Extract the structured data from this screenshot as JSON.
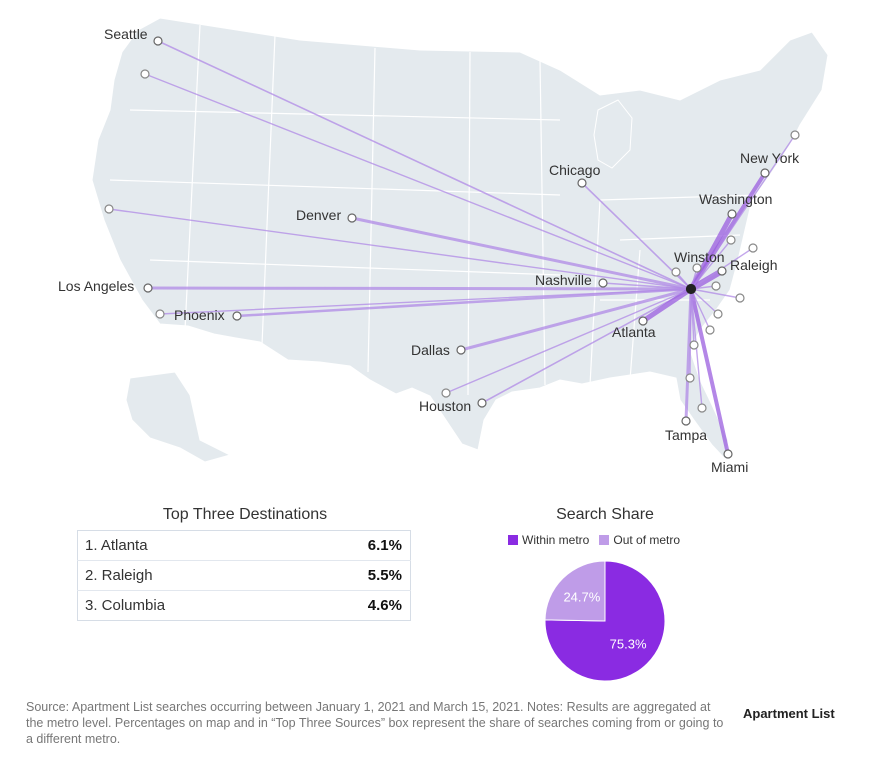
{
  "map": {
    "origin": "Winston",
    "cities": [
      {
        "name": "Seattle",
        "label": "Seattle"
      },
      {
        "name": "Denver",
        "label": "Denver"
      },
      {
        "name": "Los Angeles",
        "label": "Los Angeles"
      },
      {
        "name": "Phoenix",
        "label": "Phoenix"
      },
      {
        "name": "Dallas",
        "label": "Dallas"
      },
      {
        "name": "Houston",
        "label": "Houston"
      },
      {
        "name": "Chicago",
        "label": "Chicago"
      },
      {
        "name": "Nashville",
        "label": "Nashville"
      },
      {
        "name": "Atlanta",
        "label": "Atlanta"
      },
      {
        "name": "Tampa",
        "label": "Tampa"
      },
      {
        "name": "Miami",
        "label": "Miami"
      },
      {
        "name": "Washington",
        "label": "Washington"
      },
      {
        "name": "New York",
        "label": "New York"
      },
      {
        "name": "Raleigh",
        "label": "Raleigh"
      },
      {
        "name": "Winston",
        "label": "Winston"
      }
    ],
    "colors": {
      "land": "#e4eaee",
      "border": "#ffffff",
      "flow": "#b18ae6",
      "flow_strong": "#9b5fe0",
      "origin": "#222222"
    }
  },
  "destinations": {
    "title": "Top Three Destinations",
    "rows": [
      {
        "label": "1. Atlanta",
        "pct": "6.1%"
      },
      {
        "label": "2. Raleigh",
        "pct": "5.5%"
      },
      {
        "label": "3. Columbia",
        "pct": "4.6%"
      }
    ]
  },
  "search_share": {
    "title": "Search Share",
    "legend": [
      {
        "label": "Within metro",
        "color": "#8a2be2"
      },
      {
        "label": "Out of metro",
        "color": "#bf9ce8"
      }
    ],
    "slices": [
      {
        "name": "Within metro",
        "value": 75.3,
        "label": "75.3%",
        "color": "#8a2be2"
      },
      {
        "name": "Out of metro",
        "value": 24.7,
        "label": "24.7%",
        "color": "#bf9ce8"
      }
    ]
  },
  "footer": {
    "source": "Source: Apartment List searches occurring between January 1, 2021 and March 15, 2021. Notes: Results are aggregated at the metro level. Percentages on map and in “Top Three Sources” box represent the share of searches coming from or going to a different metro.",
    "logo": "Apartment List"
  }
}
